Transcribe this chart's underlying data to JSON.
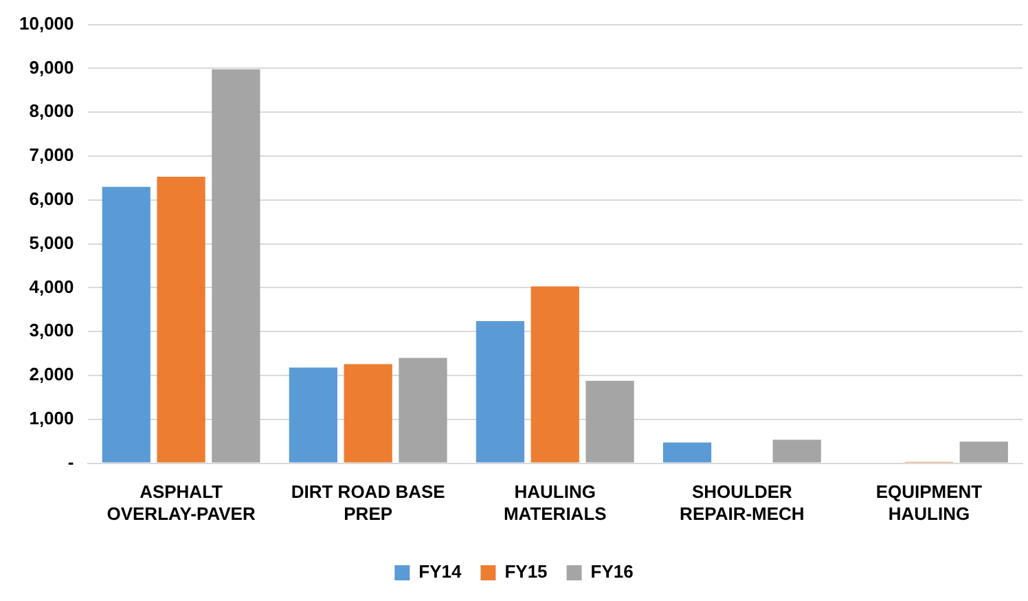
{
  "chart_data": {
    "type": "bar",
    "categories": [
      "ASPHALT OVERLAY-PAVER",
      "DIRT ROAD BASE PREP",
      "HAULING MATERIALS",
      "SHOULDER REPAIR-MECH",
      "EQUIPMENT HAULING"
    ],
    "series": [
      {
        "name": "FY14",
        "color": "#5b9bd5",
        "values": [
          6300,
          2180,
          3240,
          470,
          null
        ]
      },
      {
        "name": "FY15",
        "color": "#ed7d31",
        "values": [
          6530,
          2260,
          4030,
          null,
          30
        ]
      },
      {
        "name": "FY16",
        "color": "#a5a5a5",
        "values": [
          8980,
          2400,
          1880,
          535,
          490
        ]
      }
    ],
    "ylim": [
      0,
      10000
    ],
    "yticks": [
      {
        "value": 0,
        "label": "-"
      },
      {
        "value": 1000,
        "label": "1,000"
      },
      {
        "value": 2000,
        "label": "2,000"
      },
      {
        "value": 3000,
        "label": "3,000"
      },
      {
        "value": 4000,
        "label": "4,000"
      },
      {
        "value": 5000,
        "label": "5,000"
      },
      {
        "value": 6000,
        "label": "6,000"
      },
      {
        "value": 7000,
        "label": "7,000"
      },
      {
        "value": 8000,
        "label": "8,000"
      },
      {
        "value": 9000,
        "label": "9,000"
      },
      {
        "value": 10000,
        "label": "10,000"
      }
    ],
    "grid": "y",
    "legend": "bottom"
  }
}
